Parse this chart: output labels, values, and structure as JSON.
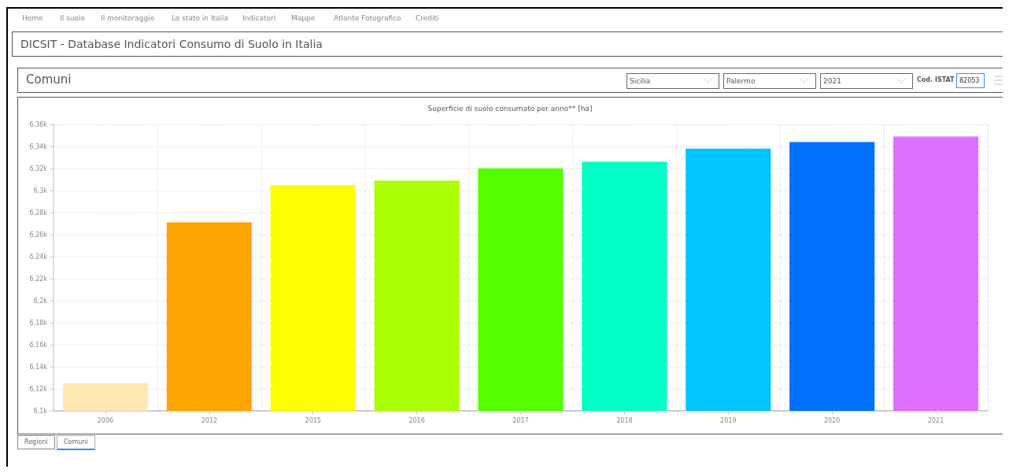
{
  "chart_data": {
    "type": "bar",
    "title": "Superficie di suolo consumato per anno** [ha]",
    "categories": [
      "2006",
      "2012",
      "2015",
      "2016",
      "2017",
      "2018",
      "2019",
      "2020",
      "2021"
    ],
    "values": [
      6125,
      6271,
      6305,
      6309,
      6320,
      6326,
      6338,
      6344,
      6349
    ],
    "colors": [
      "#ffe8b0",
      "#ffa500",
      "#ffff00",
      "#aaff00",
      "#55ff00",
      "#00ffc4",
      "#00c4ff",
      "#0070ff",
      "#dd70ff"
    ],
    "ylim": [
      6100,
      6360
    ],
    "yticks": [
      {
        "value": 6100,
        "label": "6,1k"
      },
      {
        "value": 6120,
        "label": "6,12k"
      },
      {
        "value": 6140,
        "label": "6,14k"
      },
      {
        "value": 6160,
        "label": "6,16k"
      },
      {
        "value": 6180,
        "label": "6,18k"
      },
      {
        "value": 6200,
        "label": "6,2k"
      },
      {
        "value": 6220,
        "label": "6,22k"
      },
      {
        "value": 6240,
        "label": "6,24k"
      },
      {
        "value": 6260,
        "label": "6,26k"
      },
      {
        "value": 6280,
        "label": "6,28k"
      },
      {
        "value": 6300,
        "label": "6,3k"
      },
      {
        "value": 6320,
        "label": "6,32k"
      },
      {
        "value": 6340,
        "label": "6,34k"
      },
      {
        "value": 6360,
        "label": "6,36k"
      }
    ],
    "grid": true,
    "annotations": [
      "Home",
      "Il suolo",
      "Il monitoraggio",
      "Lo stato in Italia",
      "Indicatori",
      "Mappe",
      "Atlante Fotografico",
      "Crediti",
      "DICSIT - Database Indicatori Consumo di Suolo in Italia",
      "Comuni",
      "Sicilia",
      "Palermo",
      "2021",
      "Cod. ISTAT",
      "82053",
      "Regioni",
      "Comuni"
    ]
  }
}
